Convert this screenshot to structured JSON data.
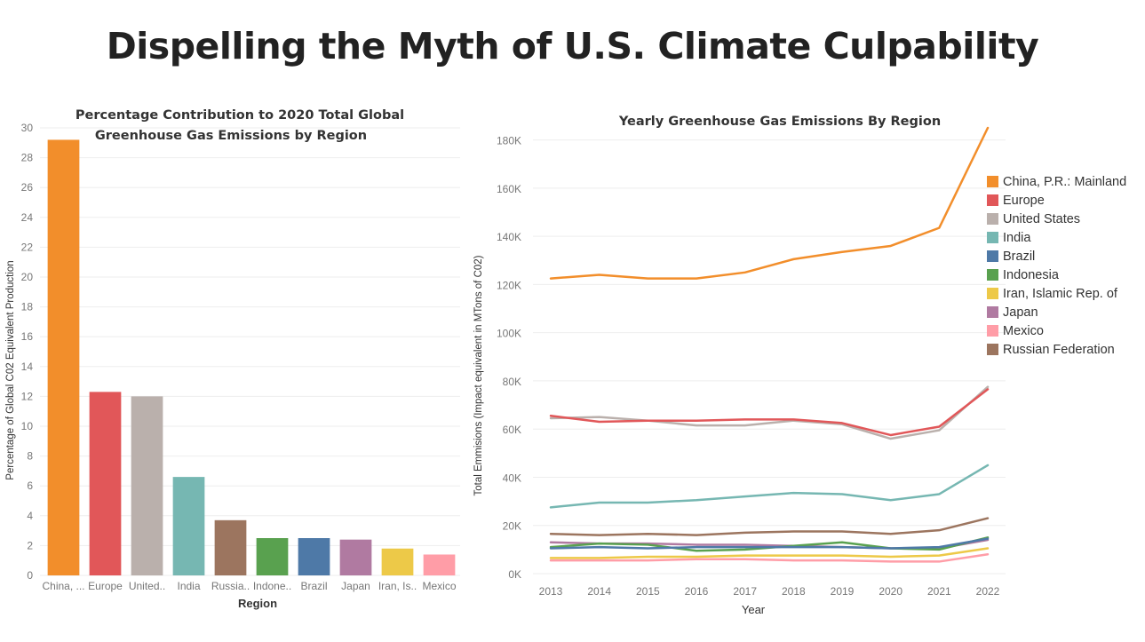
{
  "page": {
    "title": "Dispelling the Myth of U.S. Climate Culpability"
  },
  "chart_data": [
    {
      "type": "bar",
      "title_lines": [
        "Percentage Contribution to 2020 Total Global",
        "Greenhouse Gas Emissions by Region"
      ],
      "xlabel": "Region",
      "ylabel": "Percentage of Global C02 Equivalent Production",
      "categories": [
        "China, ...",
        "Europe",
        "United..",
        "India",
        "Russia..",
        "Indone..",
        "Brazil",
        "Japan",
        "Iran, Is..",
        "Mexico"
      ],
      "values": [
        29.2,
        12.3,
        12.0,
        6.6,
        3.7,
        2.5,
        2.5,
        2.4,
        1.8,
        1.4
      ],
      "colors": [
        "#f28e2b",
        "#e15759",
        "#bab0ac",
        "#76b7b2",
        "#9c755f",
        "#59a14f",
        "#4e79a7",
        "#b07aa1",
        "#edc948",
        "#ff9da7"
      ],
      "ylim": [
        0,
        30
      ],
      "yticks": [
        0,
        2,
        4,
        6,
        8,
        10,
        12,
        14,
        16,
        18,
        20,
        22,
        24,
        26,
        28,
        30
      ],
      "grid": true
    },
    {
      "type": "line",
      "title": "Yearly Greenhouse Gas Emissions By Region",
      "xlabel": "Year",
      "ylabel": "Total Emmisions (Impact equivalent in MTons of C02)",
      "x": [
        2013,
        2014,
        2015,
        2016,
        2017,
        2018,
        2019,
        2020,
        2021,
        2022
      ],
      "ylim": [
        0,
        185000
      ],
      "yticks": [
        0,
        20000,
        40000,
        60000,
        80000,
        100000,
        120000,
        140000,
        160000,
        180000
      ],
      "ytick_labels": [
        "0K",
        "20K",
        "40K",
        "60K",
        "80K",
        "100K",
        "120K",
        "140K",
        "160K",
        "180K"
      ],
      "legend_position": "right",
      "grid": true,
      "series": [
        {
          "name": "China, P.R.: Mainland",
          "color": "#f28e2b",
          "values": [
            122500,
            124000,
            122500,
            122500,
            125000,
            130500,
            133500,
            136000,
            143500,
            185000
          ]
        },
        {
          "name": "Europe",
          "color": "#e15759",
          "values": [
            65500,
            63000,
            63500,
            63500,
            64000,
            64000,
            62500,
            57500,
            61000,
            76500
          ]
        },
        {
          "name": "United States",
          "color": "#bab0ac",
          "values": [
            64500,
            65000,
            63500,
            61500,
            61500,
            63500,
            62000,
            56000,
            59500,
            77500
          ]
        },
        {
          "name": "India",
          "color": "#76b7b2",
          "values": [
            27500,
            29500,
            29500,
            30500,
            32000,
            33500,
            33000,
            30500,
            33000,
            45000
          ]
        },
        {
          "name": "Brazil",
          "color": "#4e79a7",
          "values": [
            10500,
            11000,
            10500,
            11000,
            11000,
            11000,
            11000,
            10500,
            11000,
            14500
          ]
        },
        {
          "name": "Indonesia",
          "color": "#59a14f",
          "values": [
            11000,
            12500,
            12000,
            9500,
            10000,
            11500,
            13000,
            10500,
            10000,
            15000
          ]
        },
        {
          "name": "Iran, Islamic Rep. of",
          "color": "#edc948",
          "values": [
            6500,
            6500,
            7000,
            7000,
            7500,
            7500,
            7500,
            7000,
            7500,
            10500
          ]
        },
        {
          "name": "Japan",
          "color": "#b07aa1",
          "values": [
            13000,
            12500,
            12500,
            12000,
            12000,
            11500,
            11000,
            10500,
            10500,
            14000
          ]
        },
        {
          "name": "Mexico",
          "color": "#ff9da7",
          "values": [
            5500,
            5500,
            5500,
            6000,
            6000,
            5500,
            5500,
            5000,
            5000,
            8000
          ]
        },
        {
          "name": "Russian Federation",
          "color": "#9c755f",
          "values": [
            16500,
            16000,
            16500,
            16000,
            17000,
            17500,
            17500,
            16500,
            18000,
            23000
          ]
        }
      ]
    }
  ]
}
